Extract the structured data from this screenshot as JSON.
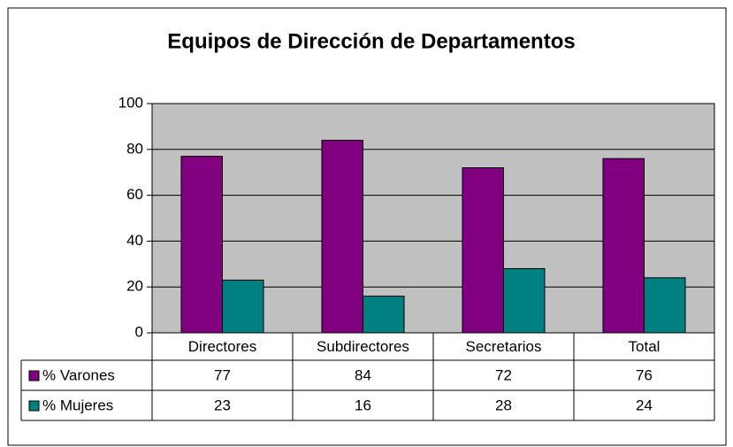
{
  "chart_data": {
    "type": "bar",
    "title": "Equipos de Dirección de Departamentos",
    "categories": [
      "Directores",
      "Subdirectores",
      "Secretarios",
      "Total"
    ],
    "series": [
      {
        "name": "% Varones",
        "color": "#800080",
        "values": [
          77,
          84,
          72,
          76
        ]
      },
      {
        "name": "% Mujeres",
        "color": "#008080",
        "values": [
          23,
          16,
          28,
          24
        ]
      }
    ],
    "ylim": [
      0,
      100
    ],
    "yticks": [
      0,
      20,
      40,
      60,
      80,
      100
    ],
    "grid": true,
    "plot_background": "#c0c0c0"
  }
}
